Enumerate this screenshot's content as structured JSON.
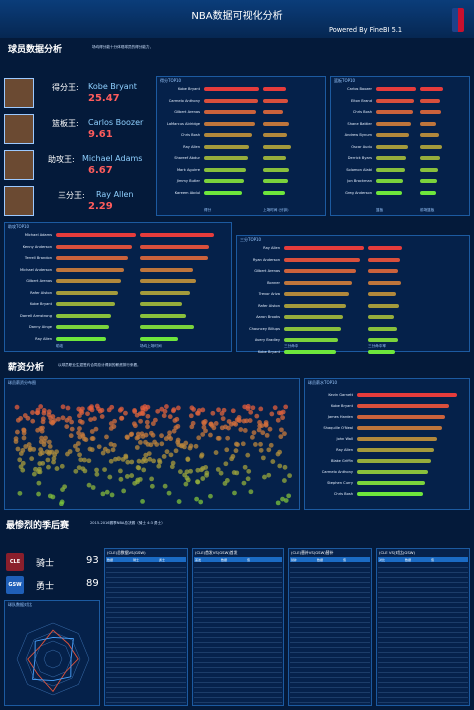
{
  "header": {
    "title": "NBA数据可视化分析",
    "powered": "Powered By FineBI 5.1"
  },
  "section1": {
    "heading": "球员数据分析",
    "intro": "场均得分能十分体现球员的得分能力，"
  },
  "stars": [
    {
      "label": "得分王:",
      "name": "Kobe Bryant",
      "value": "25.47"
    },
    {
      "label": "篮板王:",
      "name": "Carlos Boozer",
      "value": "9.61"
    },
    {
      "label": "助攻王:",
      "name": "Michael Adams",
      "value": "6.67"
    },
    {
      "label": "三分王:",
      "name": "Ray Allen",
      "value": "2.29"
    }
  ],
  "panels": {
    "score_top10": {
      "title": "得分TOP10",
      "players": [
        "Kobe Bryant",
        "Carmelo Anthony",
        "Gilbert Arenas",
        "LaMarcus Aldridge",
        "Chris Bosh",
        "Ray Allen",
        "Shareef Abdur",
        "Mark Aguirre",
        "Jimmy Butler",
        "Kareem Abdul"
      ],
      "values": [
        25.47,
        24.9,
        24.0,
        23.4,
        22.1,
        21.0,
        20.2,
        19.5,
        18.6,
        17.5
      ],
      "values2": [
        0.38,
        0.42,
        0.33,
        0.44,
        0.4,
        0.46,
        0.39,
        0.43,
        0.41,
        0.37
      ],
      "legend": [
        "得分",
        "上场时间 (分钟)"
      ]
    },
    "rebound_top10": {
      "title": "篮板TOP10",
      "players": [
        "Carlos Boozer",
        "Elton Brand",
        "Chris Bosh",
        "Shane Battier",
        "Andrew Bynum",
        "Oscar Audu",
        "Derrick Byars",
        "Solomon Alabi",
        "Jon Brockman",
        "Greg Anderson"
      ],
      "values": [
        9.61,
        9.2,
        8.8,
        8.4,
        8.0,
        7.6,
        7.2,
        6.9,
        6.6,
        6.3
      ],
      "values2": [
        0.45,
        0.4,
        0.41,
        0.32,
        0.37,
        0.43,
        0.39,
        0.36,
        0.34,
        0.31
      ],
      "legend": [
        "篮板",
        "前场篮板"
      ]
    },
    "assist_top10": {
      "title": "助攻TOP10",
      "players": [
        "Michael Adams",
        "Kenny Anderson",
        "Terrell Brandon",
        "Michael Anderson",
        "Gilbert Arenas",
        "Rafer Alston",
        "Kobe Bryant",
        "Darrell Armstrong",
        "Danny Ainge",
        "Ray Allen"
      ],
      "values": [
        6.67,
        6.3,
        6.0,
        5.7,
        5.4,
        5.2,
        4.9,
        4.6,
        4.4,
        4.2
      ],
      "values2": [
        0.93,
        0.86,
        0.85,
        0.66,
        0.7,
        0.63,
        0.52,
        0.58,
        0.67,
        0.48
      ],
      "legend": [
        "助攻",
        "场均上场时间"
      ]
    },
    "three_top10": {
      "title": "三分TOP10",
      "players": [
        "Ray Allen",
        "Ryan Anderson",
        "Gilbert Arenas",
        "Bonner",
        "Trevor Ariza",
        "Rafer Alston",
        "Aaron Brooks",
        "Chauncey Billups",
        "Avery Bradley",
        "Kobe Bryant"
      ],
      "values": [
        2.29,
        2.18,
        2.05,
        1.94,
        1.86,
        1.78,
        1.7,
        1.62,
        1.55,
        1.48
      ],
      "values2": [
        0.43,
        0.4,
        0.37,
        0.41,
        0.35,
        0.39,
        0.33,
        0.36,
        0.38,
        0.34
      ],
      "legend": [
        "三分命中",
        "三分命中率"
      ]
    }
  },
  "section2": {
    "heading": "薪资分析",
    "intro": "以球员职业生涯签约合同总计得到的薪资排行来看，",
    "scatter_title": "球员薪资分布图",
    "bar_title": "球员薪水TOP10",
    "bar_players": [
      "Kevin Garnett",
      "Kobe Bryant",
      "James Harden",
      "Shaquille O'Neal",
      "John Wall",
      "Ray Allen",
      "Blake Griffin",
      "Carmelo Anthony",
      "Stephen Curry",
      "Chris Bosh"
    ],
    "bar_values": [
      100,
      92,
      88,
      85,
      80,
      77,
      74,
      71,
      68,
      66
    ]
  },
  "section3": {
    "heading": "最惨烈的季后赛",
    "intro": "2015-2016赛季NBA总决赛（骑士 4:3 勇士）",
    "teams": [
      {
        "abbr": "CLE",
        "name": "骑士",
        "score": "93",
        "color": "#8a1f2c"
      },
      {
        "abbr": "GSW",
        "name": "勇士",
        "score": "89",
        "color": "#1f5fb8"
      }
    ],
    "radar_title": "球队数据对比",
    "tables": [
      {
        "title": "(CLE)总数据VS(GSW)",
        "cols": [
          "数据",
          "骑士",
          "勇士"
        ]
      },
      {
        "title": "(CLE)首发VS(GSW)首发",
        "cols": [
          "首发",
          "数据",
          "值"
        ]
      },
      {
        "title": "(CLE)替补VS(GSW)替补",
        "cols": [
          "替补",
          "数据",
          "值"
        ]
      },
      {
        "title": "(CLE VS)对比(GSW)",
        "cols": [
          "对比",
          "数据",
          "值"
        ]
      }
    ]
  },
  "colors": {
    "bg": "#041a3a",
    "panel_border": "#1c5aa0",
    "accent_red": "#ff5c5c"
  }
}
